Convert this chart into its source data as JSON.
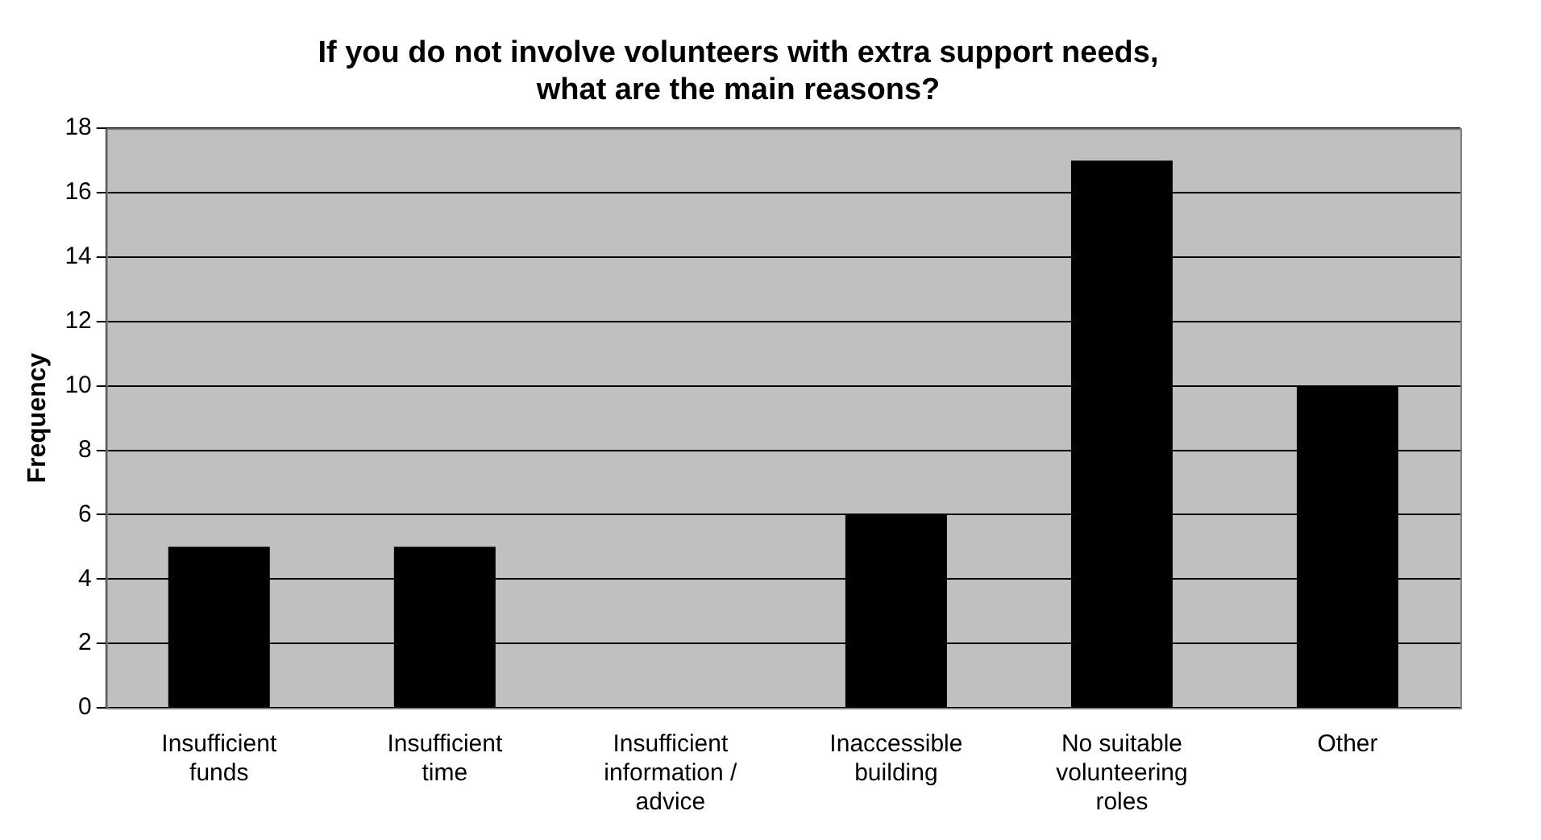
{
  "chart_data": {
    "type": "bar",
    "title": "If you do not involve volunteers with extra support needs, what are the main reasons?",
    "ylabel": "Frequency",
    "categories": [
      "Insufficient funds",
      "Insufficient time",
      "Insufficient information / advice",
      "Inaccessible building",
      "No suitable volunteering roles",
      "Other"
    ],
    "values": [
      5,
      5,
      0,
      6,
      17,
      10
    ],
    "color": "#000000",
    "ylim": [
      0,
      18
    ],
    "yticks": [
      0,
      2,
      4,
      6,
      8,
      10,
      12,
      14,
      16,
      18
    ],
    "grid": "y",
    "legend": false
  }
}
